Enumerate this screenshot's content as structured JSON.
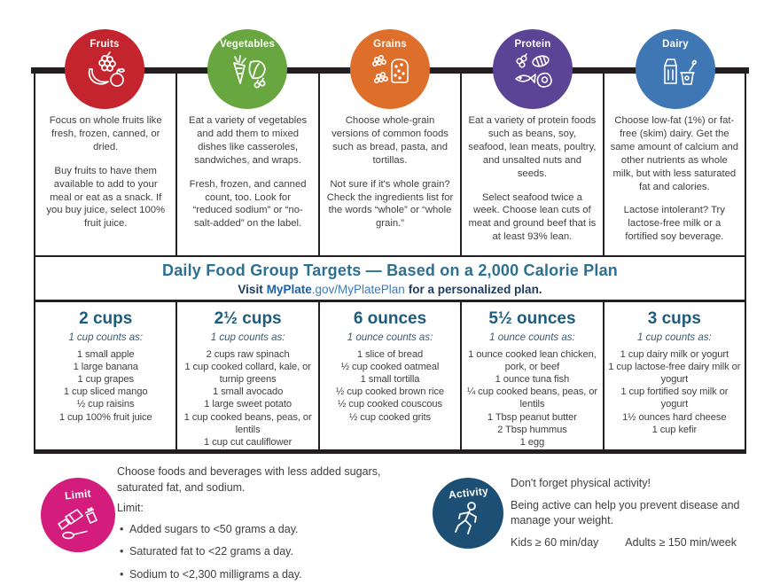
{
  "groups": [
    {
      "name": "Fruits",
      "color": "#c4242e",
      "description": {
        "p1": "Focus on whole fruits like fresh, frozen, canned, or dried.",
        "p2": "Buy fruits to have them available to add to your meal or eat as a snack. If you buy juice, select 100% fruit juice."
      },
      "target": {
        "amount": "2 cups",
        "counts_as": "1 cup counts as:",
        "items": [
          "1 small apple",
          "1 large banana",
          "1 cup grapes",
          "1 cup sliced mango",
          "½ cup raisins",
          "1 cup 100% fruit juice"
        ]
      }
    },
    {
      "name": "Vegetables",
      "color": "#68a63f",
      "description": {
        "p1": "Eat a variety of vegetables and add them to mixed dishes like casseroles, sandwiches, and wraps.",
        "p2": "Fresh, frozen, and canned count, too. Look for “reduced sodium” or “no-salt-added” on the label."
      },
      "target": {
        "amount": "2½ cups",
        "counts_as": "1 cup counts as:",
        "items": [
          "2 cups raw spinach",
          "1 cup cooked collard, kale, or turnip greens",
          "1 small avocado",
          "1 large sweet potato",
          "1 cup cooked beans, peas, or lentils",
          "1 cup cut cauliflower"
        ]
      }
    },
    {
      "name": "Grains",
      "color": "#dd6f2b",
      "description": {
        "p1": "Choose whole-grain versions of common foods such as bread, pasta, and tortillas.",
        "p2": "Not sure if it's whole grain? Check the ingredients list for the words “whole” or “whole grain.”"
      },
      "target": {
        "amount": "6 ounces",
        "counts_as": "1 ounce counts as:",
        "items": [
          "1 slice of bread",
          "½ cup cooked oatmeal",
          "1 small tortilla",
          "½ cup cooked brown rice",
          "½ cup cooked couscous",
          "½ cup cooked grits"
        ]
      }
    },
    {
      "name": "Protein",
      "color": "#5b4495",
      "description": {
        "p1": "Eat a variety of protein foods such as beans, soy, seafood, lean meats, poultry, and unsalted nuts and seeds.",
        "p2": "Select seafood twice a week. Choose lean cuts of meat and ground beef that is at least 93% lean."
      },
      "target": {
        "amount": "5½ ounces",
        "counts_as": "1 ounce counts as:",
        "items": [
          "1 ounce cooked lean chicken, pork, or beef",
          "1 ounce tuna fish",
          "¼ cup cooked beans, peas, or lentils",
          "1 Tbsp peanut butter",
          "2 Tbsp hummus",
          "1 egg"
        ]
      }
    },
    {
      "name": "Dairy",
      "color": "#3f76b4",
      "description": {
        "p1": "Choose low-fat (1%) or fat-free (skim) dairy. Get the same amount of calcium and other nutrients as whole milk, but with less saturated fat and calories.",
        "p2": "Lactose intolerant? Try lactose-free milk or a fortified soy beverage."
      },
      "target": {
        "amount": "3 cups",
        "counts_as": "1 cup counts as:",
        "items": [
          "1 cup dairy milk or yogurt",
          "1 cup lactose-free dairy milk or yogurt",
          "1 cup fortified soy milk or yogurt",
          "1½ ounces hard cheese",
          "1 cup kefir"
        ]
      }
    }
  ],
  "banner": {
    "title": "Daily Food Group Targets — Based on a 2,000 Calorie Plan",
    "visit_prefix": "Visit",
    "brand": "MyPlate",
    "brand_suffix": ".gov/MyPlatePlan",
    "visit_suffix": "for a personalized plan."
  },
  "limit_section": {
    "label": "Limit",
    "color": "#d41c7d",
    "intro": "Choose foods and beverages with less added sugars, saturated fat, and sodium.",
    "limit_label": "Limit:",
    "bullets": [
      "Added sugars to <50 grams a day.",
      "Saturated fat to <22 grams a day.",
      "Sodium to <2,300 milligrams a day."
    ]
  },
  "activity_section": {
    "label": "Activity",
    "color": "#1d4e74",
    "line1": "Don't forget physical activity!",
    "line2": "Being active can help you prevent disease and manage your weight.",
    "kids": "Kids ≥ 60 min/day",
    "adults": "Adults ≥ 150 min/week"
  }
}
